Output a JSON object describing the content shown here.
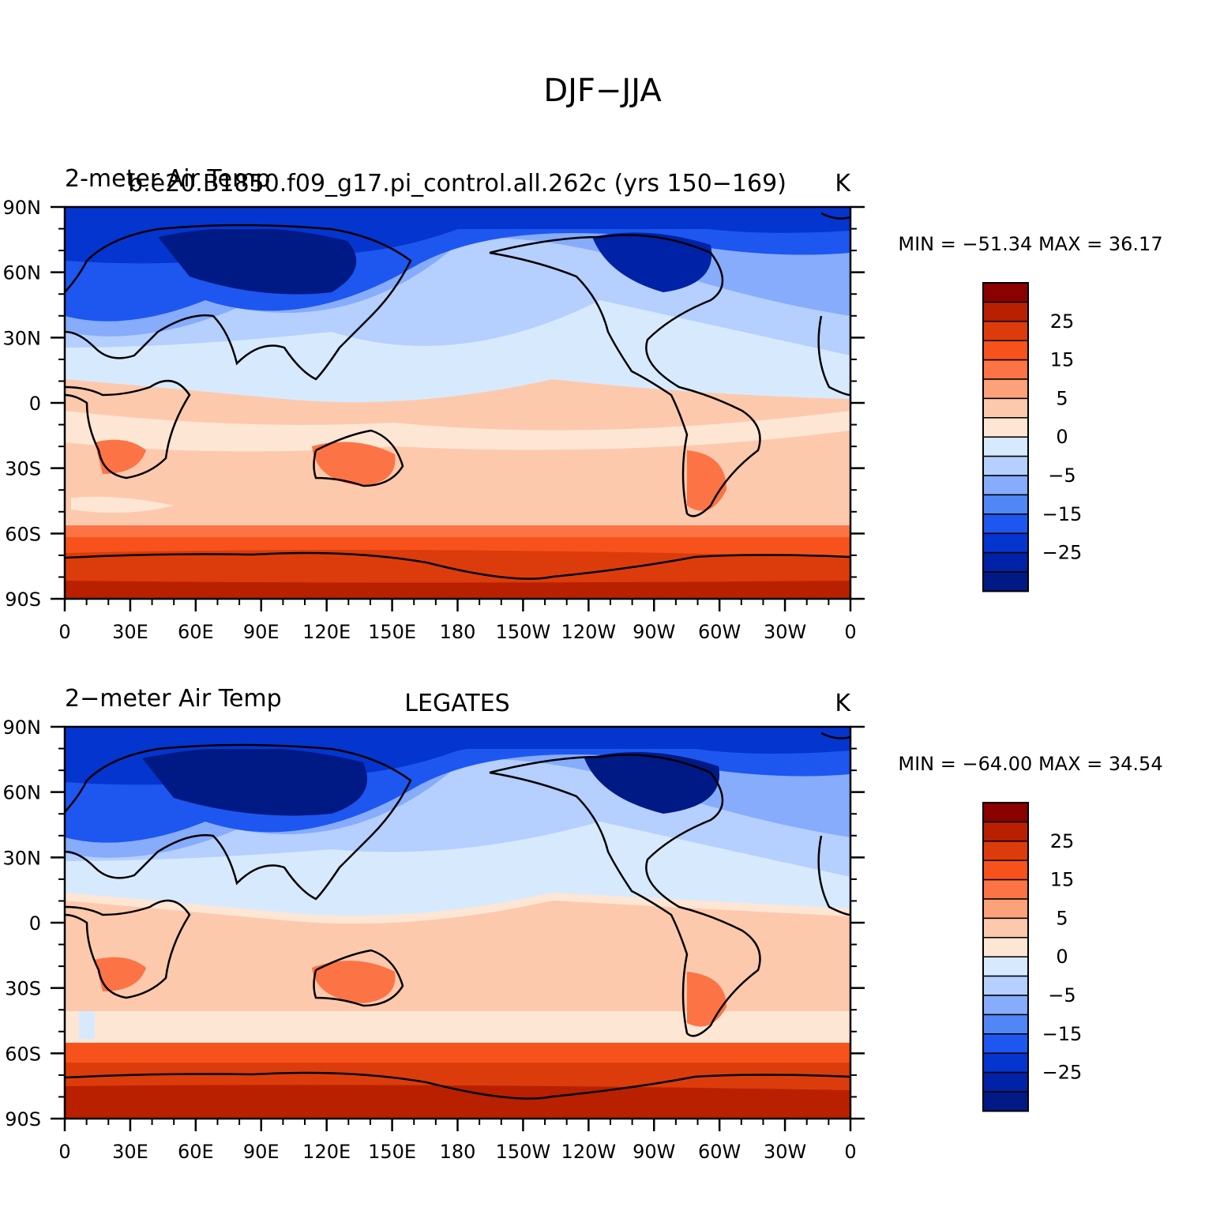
{
  "title": "DJF−JJA",
  "lat_labels": [
    "90N",
    "60N",
    "30N",
    "0",
    "30S",
    "60S",
    "90S"
  ],
  "lon_labels": [
    "0",
    "30E",
    "60E",
    "90E",
    "120E",
    "150E",
    "180",
    "150W",
    "120W",
    "90W",
    "60W",
    "30W",
    "0"
  ],
  "colorbar": {
    "labels": [
      "25",
      "15",
      "5",
      "0",
      "−5",
      "−15",
      "−25"
    ],
    "colors": [
      "#8b0000",
      "#b82000",
      "#dc3c0b",
      "#f8521c",
      "#fc7445",
      "#fca27a",
      "#fdc9ad",
      "#fee6d5",
      "#d7eafd",
      "#b5cffe",
      "#86acfb",
      "#5186f7",
      "#1e56f0",
      "#0535cf",
      "#0022a6",
      "#001a85"
    ]
  },
  "colors": {
    "cold_deep": "#001a85",
    "cold": "#0535cf",
    "cool": "#86acfb",
    "neutral_cool": "#d7eafd",
    "neutral_warm": "#fdc9ad",
    "warm": "#f8521c",
    "hot": "#b82000"
  },
  "panels": [
    {
      "left_title": "2-meter Air Temp",
      "center_title": "b.e20.B1850.f09_g17.pi_control.all.262c (yrs 150−169)",
      "units": "K",
      "min_max": "MIN = −51.34  MAX =   36.17"
    },
    {
      "left_title": "2−meter Air Temp",
      "center_title": "LEGATES",
      "units": "K",
      "min_max": "MIN = −64.00  MAX =   34.54"
    }
  ]
}
